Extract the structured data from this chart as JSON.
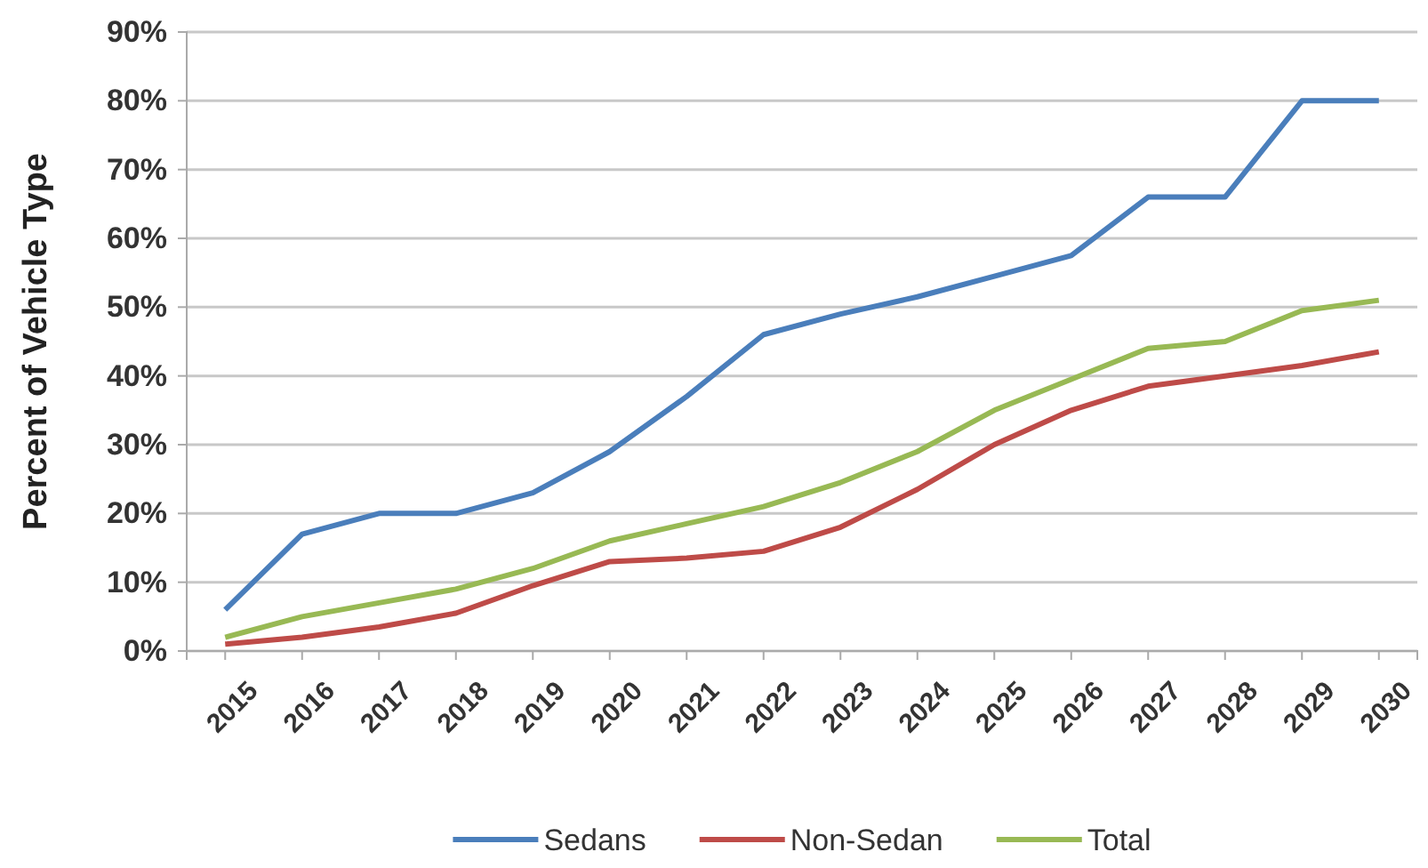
{
  "chart_data": {
    "type": "line",
    "ylabel": "Percent of Vehicle Type",
    "categories": [
      "2015",
      "2016",
      "2017",
      "2018",
      "2019",
      "2020",
      "2021",
      "2022",
      "2023",
      "2024",
      "2025",
      "2026",
      "2027",
      "2028",
      "2029",
      "2030"
    ],
    "series": [
      {
        "name": "Sedans",
        "color": "#4a7ebb",
        "values": [
          6,
          17,
          20,
          20,
          23,
          29,
          37,
          46,
          49,
          51.5,
          54.5,
          57.5,
          66,
          66,
          80,
          80
        ]
      },
      {
        "name": "Non-Sedan",
        "color": "#be4b48",
        "values": [
          1,
          2,
          3.5,
          5.5,
          9.5,
          13,
          13.5,
          14.5,
          18,
          23.5,
          30,
          35,
          38.5,
          40,
          41.5,
          43.5
        ]
      },
      {
        "name": "Total",
        "color": "#98b954",
        "values": [
          2,
          5,
          7,
          9,
          12,
          16,
          18.5,
          21,
          24.5,
          29,
          35,
          39.5,
          44,
          45,
          49.5,
          51
        ]
      }
    ],
    "ylim": [
      0,
      90
    ],
    "yticks": [
      {
        "value": 0,
        "label": "0%"
      },
      {
        "value": 10,
        "label": "10%"
      },
      {
        "value": 20,
        "label": "20%"
      },
      {
        "value": 30,
        "label": "30%"
      },
      {
        "value": 40,
        "label": "40%"
      },
      {
        "value": 50,
        "label": "50%"
      },
      {
        "value": 60,
        "label": "60%"
      },
      {
        "value": 70,
        "label": "70%"
      },
      {
        "value": 80,
        "label": "80%"
      },
      {
        "value": 90,
        "label": "90%"
      }
    ],
    "grid": "y",
    "legend": "bottom",
    "marker": "none",
    "line_style": "solid"
  }
}
